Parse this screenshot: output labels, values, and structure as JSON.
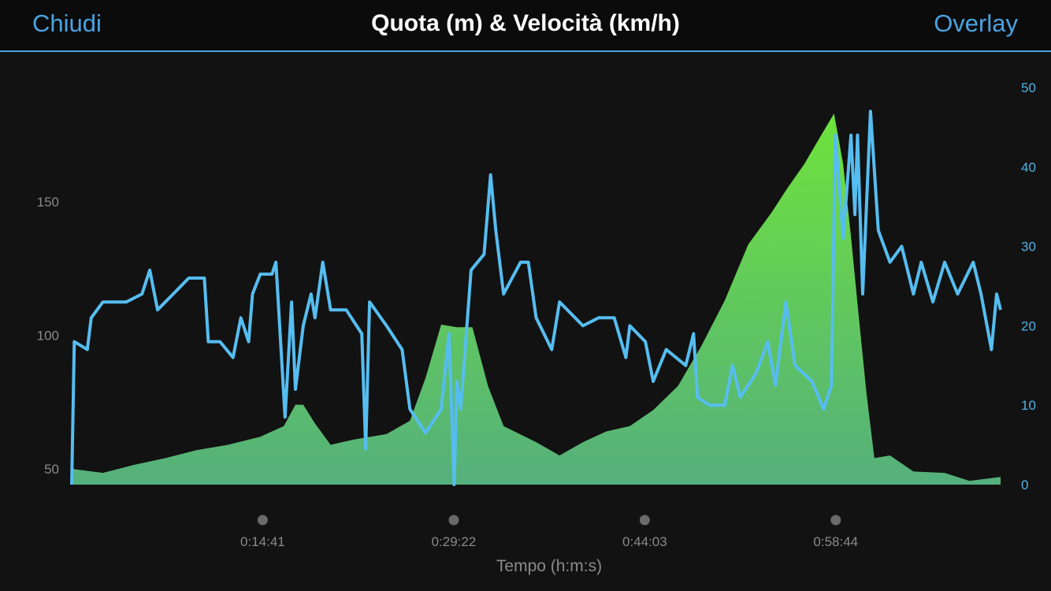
{
  "header": {
    "close_label": "Chiudi",
    "title": "Quota (m) & Velocità (km/h)",
    "overlay_label": "Overlay"
  },
  "colors": {
    "speed": "#56bdf0",
    "altitude_top": "#6ee23c",
    "altitude_bottom": "#55b07c",
    "accent": "#4aa3e3"
  },
  "chart_data": {
    "type": "area+line",
    "title": "Quota (m) & Velocità (km/h)",
    "xlabel": "Tempo (h:m:s)",
    "x_unit": "minutes",
    "xlim": [
      0,
      71.4
    ],
    "x_ticks": [
      {
        "value": 14.68,
        "label": "0:14:41"
      },
      {
        "value": 29.37,
        "label": "0:29:22"
      },
      {
        "value": 44.05,
        "label": "0:44:03"
      },
      {
        "value": 58.73,
        "label": "0:58:44"
      }
    ],
    "left_axis": {
      "label": "Quota (m)",
      "ticks": [
        "50",
        "100",
        "150"
      ],
      "tick_values": [
        50,
        100,
        150
      ],
      "ylim": [
        44,
        200
      ]
    },
    "right_axis": {
      "label": "Velocità (km/h)",
      "ticks": [
        "0",
        "10",
        "20",
        "30",
        "40",
        "50"
      ],
      "tick_values": [
        0,
        10,
        20,
        30,
        40,
        50
      ],
      "ylim": [
        0,
        50
      ]
    },
    "altitude": {
      "name": "Quota (m)",
      "type": "area",
      "x": [
        0,
        2.4,
        4.8,
        7.2,
        9.6,
        12.0,
        14.5,
        16.3,
        17.2,
        17.8,
        18.7,
        19.9,
        21.7,
        24.2,
        26.0,
        27.2,
        28.4,
        29.6,
        30.8,
        32.0,
        33.2,
        35.7,
        37.5,
        39.3,
        41.1,
        42.9,
        44.7,
        46.6,
        48.4,
        50.2,
        52.0,
        53.8,
        55.0,
        56.3,
        57.5,
        58.6,
        59.3,
        59.9,
        60.5,
        61.1,
        61.7,
        62.9,
        64.7,
        67.1,
        69.0,
        71.4
      ],
      "y": [
        50,
        48.5,
        51.5,
        54,
        57,
        59,
        62,
        66,
        74,
        74,
        67,
        59,
        61,
        63,
        68,
        84,
        104,
        103,
        103,
        81,
        66,
        60,
        55,
        60,
        64,
        66,
        72,
        81,
        96,
        113,
        134,
        146,
        155,
        164,
        174,
        183,
        164,
        137,
        107,
        78,
        54,
        55,
        49,
        48.5,
        45.5,
        47
      ]
    },
    "speed": {
      "name": "Velocità (km/h)",
      "type": "line",
      "x": [
        0,
        0.2,
        1.2,
        1.5,
        2.4,
        4.2,
        5.4,
        6.0,
        6.6,
        7.8,
        9.0,
        10.2,
        10.5,
        11.4,
        12.4,
        13.0,
        13.6,
        13.9,
        14.5,
        15.4,
        15.7,
        16.4,
        16.9,
        17.2,
        17.8,
        18.4,
        18.7,
        19.3,
        19.9,
        21.1,
        22.3,
        22.6,
        22.9,
        24.2,
        25.4,
        26.0,
        27.2,
        28.4,
        29.0,
        29.4,
        29.6,
        29.9,
        30.7,
        31.7,
        32.2,
        32.6,
        33.2,
        34.5,
        35.1,
        35.7,
        36.9,
        37.5,
        39.3,
        40.5,
        41.7,
        42.6,
        42.9,
        44.1,
        44.7,
        45.7,
        47.2,
        47.8,
        48.1,
        49.0,
        50.2,
        50.8,
        51.4,
        52.6,
        53.5,
        54.1,
        54.9,
        55.6,
        56.9,
        57.8,
        58.4,
        58.7,
        59.3,
        59.9,
        60.2,
        60.4,
        60.8,
        61.4,
        62.0,
        62.9,
        63.8,
        64.7,
        65.3,
        66.2,
        67.1,
        68.1,
        69.3,
        69.9,
        70.7,
        71.1,
        71.4
      ],
      "y": [
        0,
        18,
        17,
        21,
        23,
        23,
        24,
        27,
        22,
        24,
        26,
        26,
        18,
        18,
        16,
        21,
        18,
        24,
        26.5,
        26.5,
        28,
        8.5,
        23,
        12,
        20,
        24,
        21,
        28,
        22,
        22,
        19,
        4.5,
        23,
        20,
        17,
        9.5,
        6.5,
        9.5,
        19,
        0,
        13,
        9.5,
        27,
        29,
        39,
        32,
        24,
        28,
        28,
        21,
        17,
        23,
        20,
        21,
        21,
        16,
        20,
        18,
        13,
        17,
        15,
        19,
        11,
        10,
        10,
        15,
        11,
        14,
        18,
        12.5,
        23,
        15,
        13,
        9.5,
        12.5,
        44,
        31,
        44,
        34,
        44,
        24,
        47,
        32,
        28,
        30,
        24,
        28,
        23,
        28,
        24,
        28,
        24,
        17,
        24,
        22
      ]
    }
  }
}
